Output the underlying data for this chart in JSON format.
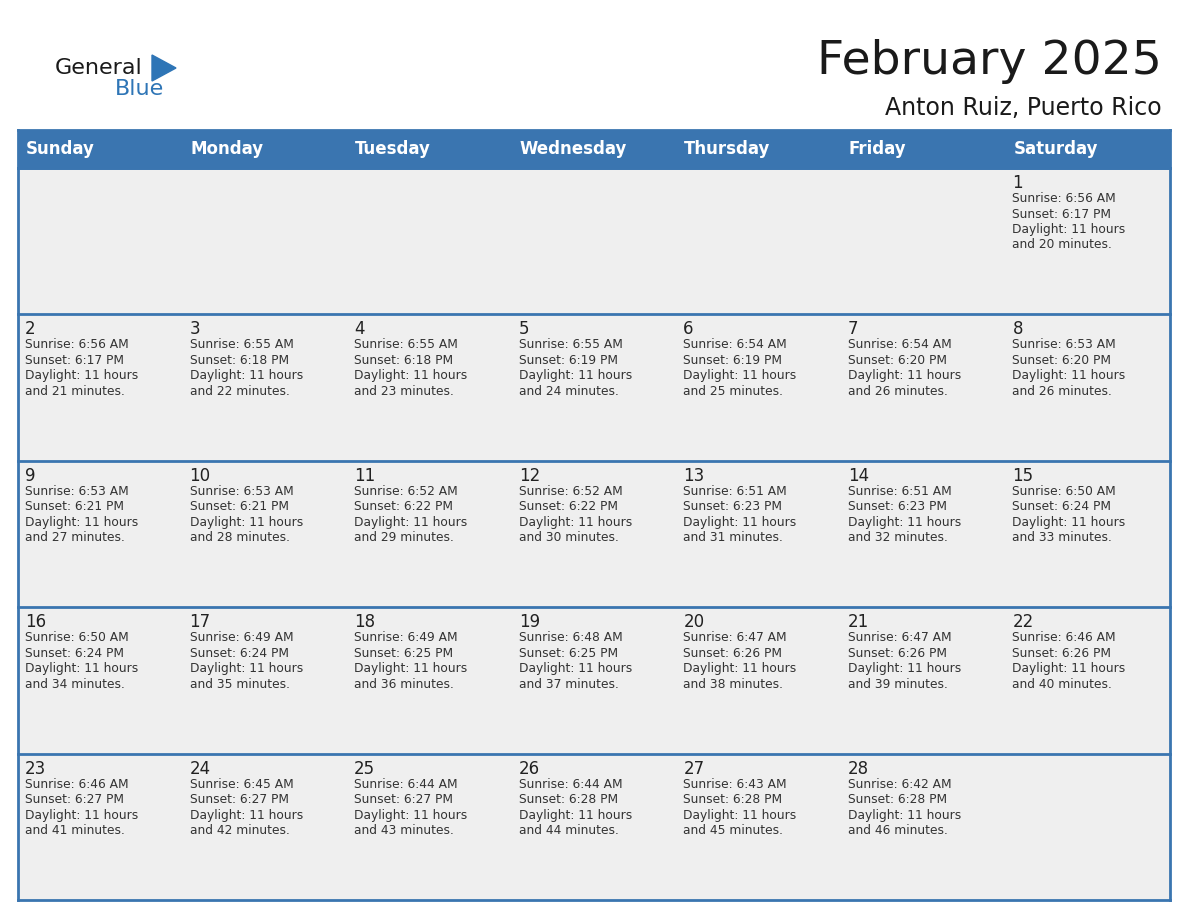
{
  "title": "February 2025",
  "subtitle": "Anton Ruiz, Puerto Rico",
  "days_of_week": [
    "Sunday",
    "Monday",
    "Tuesday",
    "Wednesday",
    "Thursday",
    "Friday",
    "Saturday"
  ],
  "header_bg_color": "#3A75B0",
  "header_text_color": "#FFFFFF",
  "cell_bg_color": "#EFEFEF",
  "border_color": "#3A75B0",
  "day_num_color": "#222222",
  "info_text_color": "#333333",
  "title_color": "#1a1a1a",
  "logo_general_color": "#1a1a1a",
  "logo_blue_color": "#2E75B6",
  "calendar_data": [
    {
      "day": 1,
      "col": 6,
      "row": 0,
      "sunrise": "6:56 AM",
      "sunset": "6:17 PM",
      "daylight_hours": 11,
      "daylight_minutes": 20
    },
    {
      "day": 2,
      "col": 0,
      "row": 1,
      "sunrise": "6:56 AM",
      "sunset": "6:17 PM",
      "daylight_hours": 11,
      "daylight_minutes": 21
    },
    {
      "day": 3,
      "col": 1,
      "row": 1,
      "sunrise": "6:55 AM",
      "sunset": "6:18 PM",
      "daylight_hours": 11,
      "daylight_minutes": 22
    },
    {
      "day": 4,
      "col": 2,
      "row": 1,
      "sunrise": "6:55 AM",
      "sunset": "6:18 PM",
      "daylight_hours": 11,
      "daylight_minutes": 23
    },
    {
      "day": 5,
      "col": 3,
      "row": 1,
      "sunrise": "6:55 AM",
      "sunset": "6:19 PM",
      "daylight_hours": 11,
      "daylight_minutes": 24
    },
    {
      "day": 6,
      "col": 4,
      "row": 1,
      "sunrise": "6:54 AM",
      "sunset": "6:19 PM",
      "daylight_hours": 11,
      "daylight_minutes": 25
    },
    {
      "day": 7,
      "col": 5,
      "row": 1,
      "sunrise": "6:54 AM",
      "sunset": "6:20 PM",
      "daylight_hours": 11,
      "daylight_minutes": 26
    },
    {
      "day": 8,
      "col": 6,
      "row": 1,
      "sunrise": "6:53 AM",
      "sunset": "6:20 PM",
      "daylight_hours": 11,
      "daylight_minutes": 26
    },
    {
      "day": 9,
      "col": 0,
      "row": 2,
      "sunrise": "6:53 AM",
      "sunset": "6:21 PM",
      "daylight_hours": 11,
      "daylight_minutes": 27
    },
    {
      "day": 10,
      "col": 1,
      "row": 2,
      "sunrise": "6:53 AM",
      "sunset": "6:21 PM",
      "daylight_hours": 11,
      "daylight_minutes": 28
    },
    {
      "day": 11,
      "col": 2,
      "row": 2,
      "sunrise": "6:52 AM",
      "sunset": "6:22 PM",
      "daylight_hours": 11,
      "daylight_minutes": 29
    },
    {
      "day": 12,
      "col": 3,
      "row": 2,
      "sunrise": "6:52 AM",
      "sunset": "6:22 PM",
      "daylight_hours": 11,
      "daylight_minutes": 30
    },
    {
      "day": 13,
      "col": 4,
      "row": 2,
      "sunrise": "6:51 AM",
      "sunset": "6:23 PM",
      "daylight_hours": 11,
      "daylight_minutes": 31
    },
    {
      "day": 14,
      "col": 5,
      "row": 2,
      "sunrise": "6:51 AM",
      "sunset": "6:23 PM",
      "daylight_hours": 11,
      "daylight_minutes": 32
    },
    {
      "day": 15,
      "col": 6,
      "row": 2,
      "sunrise": "6:50 AM",
      "sunset": "6:24 PM",
      "daylight_hours": 11,
      "daylight_minutes": 33
    },
    {
      "day": 16,
      "col": 0,
      "row": 3,
      "sunrise": "6:50 AM",
      "sunset": "6:24 PM",
      "daylight_hours": 11,
      "daylight_minutes": 34
    },
    {
      "day": 17,
      "col": 1,
      "row": 3,
      "sunrise": "6:49 AM",
      "sunset": "6:24 PM",
      "daylight_hours": 11,
      "daylight_minutes": 35
    },
    {
      "day": 18,
      "col": 2,
      "row": 3,
      "sunrise": "6:49 AM",
      "sunset": "6:25 PM",
      "daylight_hours": 11,
      "daylight_minutes": 36
    },
    {
      "day": 19,
      "col": 3,
      "row": 3,
      "sunrise": "6:48 AM",
      "sunset": "6:25 PM",
      "daylight_hours": 11,
      "daylight_minutes": 37
    },
    {
      "day": 20,
      "col": 4,
      "row": 3,
      "sunrise": "6:47 AM",
      "sunset": "6:26 PM",
      "daylight_hours": 11,
      "daylight_minutes": 38
    },
    {
      "day": 21,
      "col": 5,
      "row": 3,
      "sunrise": "6:47 AM",
      "sunset": "6:26 PM",
      "daylight_hours": 11,
      "daylight_minutes": 39
    },
    {
      "day": 22,
      "col": 6,
      "row": 3,
      "sunrise": "6:46 AM",
      "sunset": "6:26 PM",
      "daylight_hours": 11,
      "daylight_minutes": 40
    },
    {
      "day": 23,
      "col": 0,
      "row": 4,
      "sunrise": "6:46 AM",
      "sunset": "6:27 PM",
      "daylight_hours": 11,
      "daylight_minutes": 41
    },
    {
      "day": 24,
      "col": 1,
      "row": 4,
      "sunrise": "6:45 AM",
      "sunset": "6:27 PM",
      "daylight_hours": 11,
      "daylight_minutes": 42
    },
    {
      "day": 25,
      "col": 2,
      "row": 4,
      "sunrise": "6:44 AM",
      "sunset": "6:27 PM",
      "daylight_hours": 11,
      "daylight_minutes": 43
    },
    {
      "day": 26,
      "col": 3,
      "row": 4,
      "sunrise": "6:44 AM",
      "sunset": "6:28 PM",
      "daylight_hours": 11,
      "daylight_minutes": 44
    },
    {
      "day": 27,
      "col": 4,
      "row": 4,
      "sunrise": "6:43 AM",
      "sunset": "6:28 PM",
      "daylight_hours": 11,
      "daylight_minutes": 45
    },
    {
      "day": 28,
      "col": 5,
      "row": 4,
      "sunrise": "6:42 AM",
      "sunset": "6:28 PM",
      "daylight_hours": 11,
      "daylight_minutes": 46
    }
  ]
}
